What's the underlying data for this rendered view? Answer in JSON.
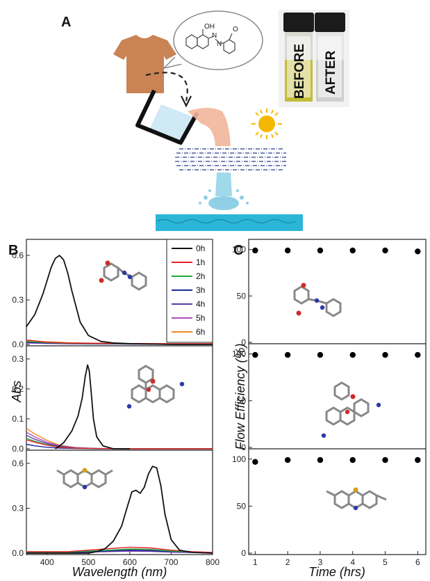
{
  "panels": {
    "A": "A",
    "B": "B",
    "C": "C"
  },
  "schematic": {
    "vial_before": "BEFORE",
    "vial_after": "AFTER",
    "molecule_labels": [
      "OH",
      "N",
      "N",
      "O"
    ]
  },
  "colors": {
    "shirt": "#c98354",
    "water": "#2bb6d8",
    "stream": "#f2b59a",
    "sun": "#f5b800",
    "before_liquid": "#c4bd3a",
    "after_liquid": "#cfcfcf"
  },
  "chart_data": [
    {
      "type": "line",
      "panel": "B",
      "xlabel": "Wavelength (nm)",
      "ylabel": "Abs",
      "x_ticks": [
        "400",
        "500",
        "600",
        "700",
        "800"
      ],
      "xlim": [
        350,
        800
      ],
      "legend": {
        "placement": "top-right",
        "entries": [
          {
            "name": "0h",
            "color": "#111111"
          },
          {
            "name": "1h",
            "color": "#e8202a"
          },
          {
            "name": "2h",
            "color": "#1faa3b"
          },
          {
            "name": "3h",
            "color": "#1a2a9a"
          },
          {
            "name": "4h",
            "color": "#5a3aa8"
          },
          {
            "name": "5h",
            "color": "#b04cc2"
          },
          {
            "name": "6h",
            "color": "#f08a1c"
          }
        ]
      },
      "subplots": [
        {
          "ylim": [
            0,
            0.68
          ],
          "y_ticks": [
            "0.0",
            "0.3",
            "0.6"
          ],
          "series": [
            {
              "name": "0h",
              "x": [
                350,
                370,
                390,
                410,
                420,
                430,
                440,
                450,
                460,
                480,
                500,
                530,
                560,
                600,
                700,
                800
              ],
              "y": [
                0.12,
                0.2,
                0.34,
                0.52,
                0.58,
                0.6,
                0.57,
                0.48,
                0.36,
                0.15,
                0.06,
                0.02,
                0.01,
                0.005,
                0.0,
                0.0
              ]
            },
            {
              "name": "1h",
              "x": [
                350,
                400,
                450,
                500,
                600,
                700,
                800
              ],
              "y": [
                0.03,
                0.015,
                0.01,
                0.008,
                0.006,
                0.005,
                0.005
              ]
            },
            {
              "name": "2h",
              "x": [
                350,
                400,
                450,
                500,
                600,
                700,
                800
              ],
              "y": [
                0.02,
                0.012,
                0.008,
                0.006,
                0.004,
                0.003,
                0.003
              ]
            },
            {
              "name": "3h",
              "x": [
                350,
                400,
                450,
                500,
                600,
                700,
                800
              ],
              "y": [
                0.015,
                0.01,
                0.006,
                0.004,
                0.003,
                0.002,
                0.002
              ]
            },
            {
              "name": "4h",
              "x": [
                350,
                400,
                450,
                500,
                600,
                700,
                800
              ],
              "y": [
                0.012,
                0.008,
                0.005,
                0.004,
                0.003,
                0.002,
                0.002
              ]
            },
            {
              "name": "5h",
              "x": [
                350,
                400,
                450,
                500,
                600,
                700,
                800
              ],
              "y": [
                0.01,
                0.006,
                0.004,
                0.003,
                0.002,
                0.001,
                0.001
              ]
            },
            {
              "name": "6h",
              "x": [
                350,
                400,
                450,
                500,
                600,
                700,
                800
              ],
              "y": [
                0.025,
                0.018,
                0.012,
                0.009,
                0.006,
                0.004,
                0.004
              ]
            }
          ]
        },
        {
          "ylim": [
            0,
            0.33
          ],
          "y_ticks": [
            "0.0",
            "0.1",
            "0.2",
            "0.3"
          ],
          "series": [
            {
              "name": "0h",
              "x": [
                420,
                440,
                460,
                475,
                485,
                492,
                498,
                502,
                506,
                512,
                520,
                535,
                560,
                600
              ],
              "y": [
                0.0,
                0.02,
                0.06,
                0.11,
                0.17,
                0.24,
                0.28,
                0.26,
                0.2,
                0.1,
                0.04,
                0.01,
                0.0,
                0.0
              ]
            },
            {
              "name": "1h",
              "x": [
                350,
                370,
                400,
                430,
                470,
                520,
                600,
                700,
                800
              ],
              "y": [
                0.03,
                0.022,
                0.012,
                0.005,
                0.002,
                0.001,
                0.0,
                0.0,
                0.0
              ]
            },
            {
              "name": "2h",
              "x": [
                350,
                370,
                400,
                430,
                470,
                520,
                600,
                700,
                800
              ],
              "y": [
                0.035,
                0.025,
                0.014,
                0.006,
                0.002,
                0.001,
                0.0,
                0.0,
                0.0
              ]
            },
            {
              "name": "3h",
              "x": [
                350,
                370,
                400,
                430,
                470,
                520,
                600,
                700,
                800
              ],
              "y": [
                0.015,
                0.01,
                0.005,
                0.002,
                0.001,
                0.0,
                0.0,
                0.0,
                0.0
              ]
            },
            {
              "name": "4h",
              "x": [
                350,
                370,
                400,
                430,
                470,
                520,
                600,
                700,
                800
              ],
              "y": [
                0.045,
                0.032,
                0.018,
                0.008,
                0.003,
                0.001,
                0.0,
                0.0,
                0.0
              ]
            },
            {
              "name": "5h",
              "x": [
                350,
                370,
                400,
                430,
                470,
                520,
                600,
                700,
                800
              ],
              "y": [
                0.055,
                0.04,
                0.022,
                0.01,
                0.004,
                0.001,
                0.0,
                0.0,
                0.0
              ]
            },
            {
              "name": "6h",
              "x": [
                350,
                370,
                400,
                430,
                470,
                520,
                600,
                700,
                800
              ],
              "y": [
                0.068,
                0.05,
                0.028,
                0.012,
                0.004,
                0.001,
                0.0,
                0.0,
                0.0
              ]
            }
          ]
        },
        {
          "ylim": [
            0,
            0.66
          ],
          "y_ticks": [
            "0.0",
            "0.3",
            "0.6"
          ],
          "series": [
            {
              "name": "0h",
              "x": [
                350,
                500,
                520,
                540,
                560,
                580,
                595,
                605,
                615,
                625,
                635,
                645,
                655,
                665,
                675,
                685,
                700,
                720,
                750,
                800
              ],
              "y": [
                0.0,
                0.0,
                0.01,
                0.03,
                0.08,
                0.18,
                0.32,
                0.41,
                0.42,
                0.4,
                0.44,
                0.53,
                0.58,
                0.57,
                0.45,
                0.26,
                0.09,
                0.02,
                0.005,
                0.0
              ]
            },
            {
              "name": "1h",
              "x": [
                350,
                450,
                550,
                600,
                650,
                700,
                750,
                800
              ],
              "y": [
                0.01,
                0.01,
                0.03,
                0.04,
                0.035,
                0.02,
                0.01,
                0.005
              ]
            },
            {
              "name": "2h",
              "x": [
                350,
                450,
                550,
                600,
                650,
                700,
                750,
                800
              ],
              "y": [
                0.008,
                0.008,
                0.02,
                0.028,
                0.025,
                0.014,
                0.008,
                0.004
              ]
            },
            {
              "name": "3h",
              "x": [
                350,
                450,
                550,
                600,
                650,
                700,
                750,
                800
              ],
              "y": [
                0.006,
                0.006,
                0.015,
                0.02,
                0.018,
                0.01,
                0.006,
                0.003
              ]
            },
            {
              "name": "4h",
              "x": [
                350,
                450,
                550,
                600,
                650,
                700,
                750,
                800
              ],
              "y": [
                0.005,
                0.005,
                0.012,
                0.016,
                0.014,
                0.008,
                0.005,
                0.002
              ]
            },
            {
              "name": "5h",
              "x": [
                350,
                450,
                550,
                600,
                650,
                700,
                750,
                800
              ],
              "y": [
                0.004,
                0.004,
                0.01,
                0.013,
                0.011,
                0.007,
                0.004,
                0.002
              ]
            },
            {
              "name": "6h",
              "x": [
                350,
                450,
                550,
                600,
                650,
                700,
                750,
                800
              ],
              "y": [
                0.006,
                0.006,
                0.018,
                0.024,
                0.02,
                0.012,
                0.007,
                0.003
              ]
            }
          ]
        }
      ]
    },
    {
      "type": "scatter",
      "panel": "C",
      "xlabel": "Time (hrs)",
      "ylabel": "Flow Efficiency (%)",
      "x_ticks": [
        "1",
        "2",
        "3",
        "4",
        "5",
        "6"
      ],
      "xlim": [
        0.8,
        6.25
      ],
      "subplots": [
        {
          "ylim": [
            0,
            105
          ],
          "y_ticks": [
            "0",
            "50",
            "100"
          ],
          "series": [
            {
              "x": [
                1,
                2,
                3,
                4,
                5,
                6
              ],
              "y": [
                99,
                99,
                99,
                99,
                99,
                98
              ]
            }
          ]
        },
        {
          "ylim": [
            0,
            105
          ],
          "y_ticks": [
            "0",
            "50",
            "100"
          ],
          "series": [
            {
              "x": [
                1,
                2,
                3,
                4,
                5,
                6
              ],
              "y": [
                99,
                99,
                99,
                99,
                99,
                99
              ]
            }
          ]
        },
        {
          "ylim": [
            0,
            105
          ],
          "y_ticks": [
            "0",
            "50",
            "100"
          ],
          "series": [
            {
              "x": [
                1,
                2,
                3,
                4,
                5,
                6
              ],
              "y": [
                97,
                99,
                99,
                99,
                99,
                99
              ]
            }
          ]
        }
      ]
    }
  ]
}
